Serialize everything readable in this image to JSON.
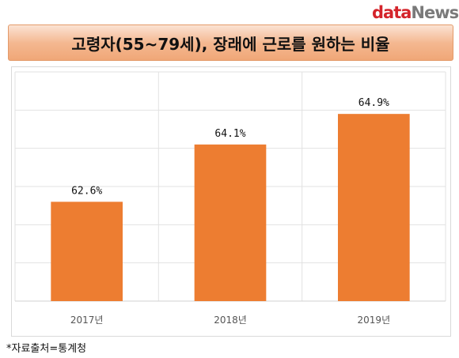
{
  "logo": {
    "part1": "data",
    "part2": "News"
  },
  "title": "고령자(55~79세), 장래에 근로를 원하는 비율",
  "source": "*자료출처=통계청",
  "colors": {
    "bar": "#ed7d31",
    "title_bar": "#f4b891",
    "logo_red": "#d4242b",
    "logo_gray": "#7a7a7a"
  },
  "chart_data": {
    "type": "bar",
    "categories": [
      "2017년",
      "2018년",
      "2019년"
    ],
    "values": [
      62.6,
      64.1,
      64.9
    ],
    "data_labels": [
      "62.6%",
      "64.1%",
      "64.9%"
    ],
    "ylim": [
      60,
      66
    ],
    "grid": true,
    "legend": "none",
    "xlabel": "",
    "ylabel": ""
  }
}
